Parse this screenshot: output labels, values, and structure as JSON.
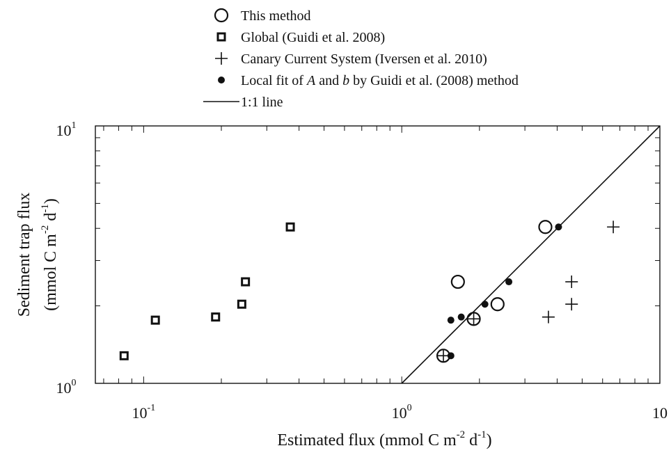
{
  "chart_data": {
    "type": "scatter",
    "xscale": "log",
    "yscale": "log",
    "xlim": [
      0.065,
      10
    ],
    "ylim": [
      1,
      10
    ],
    "xlabel": {
      "main": "Estimated flux (mmol C m",
      "exp1": "-2",
      "mid": " d",
      "exp2": "-1",
      "end": ")"
    },
    "ylabel": {
      "line1": "Sediment trap flux",
      "line2_main": "(mmol C m",
      "exp1": "-2",
      "mid": " d",
      "exp2": "-1",
      "end": ")"
    },
    "x_ticks": [
      {
        "value": 0.1,
        "base": "10",
        "exp": "-1"
      },
      {
        "value": 1,
        "base": "10",
        "exp": "0"
      },
      {
        "value": 10,
        "base": "10",
        "exp": ""
      }
    ],
    "y_ticks": [
      {
        "value": 1,
        "base": "10",
        "exp": "0"
      },
      {
        "value": 10,
        "base": "10",
        "exp": "1"
      }
    ],
    "legend_position": "top-center, outside plot",
    "legend": [
      {
        "label": "This method",
        "marker": "open-circle"
      },
      {
        "label": "Global (Guidi et al. 2008)",
        "marker": "open-square"
      },
      {
        "label": "Canary Current System (Iversen et al. 2010)",
        "marker": "plus"
      },
      {
        "label_parts": [
          "Local fit of ",
          "A",
          " and ",
          "b",
          " by Guidi et al. (2008) method"
        ],
        "marker": "filled-dot"
      },
      {
        "label": "1:1 line",
        "marker": "line"
      }
    ],
    "series": [
      {
        "name": "This method",
        "marker": "open-circle",
        "points": [
          [
            1.45,
            1.28
          ],
          [
            1.9,
            1.78
          ],
          [
            1.65,
            2.48
          ],
          [
            2.35,
            2.03
          ],
          [
            3.6,
            4.05
          ]
        ]
      },
      {
        "name": "Global (Guidi et al. 2008)",
        "marker": "open-square",
        "points": [
          [
            0.084,
            1.28
          ],
          [
            0.111,
            1.76
          ],
          [
            0.19,
            1.81
          ],
          [
            0.24,
            2.03
          ],
          [
            0.248,
            2.48
          ],
          [
            0.37,
            4.05
          ]
        ]
      },
      {
        "name": "Canary Current System (Iversen et al. 2010)",
        "marker": "plus",
        "points": [
          [
            1.45,
            1.28
          ],
          [
            1.9,
            1.78
          ],
          [
            3.7,
            1.81
          ],
          [
            4.55,
            2.03
          ],
          [
            4.55,
            2.48
          ],
          [
            6.6,
            4.05
          ]
        ]
      },
      {
        "name": "Local fit of A and b by Guidi et al. (2008) method",
        "marker": "filled-dot",
        "points": [
          [
            1.55,
            1.28
          ],
          [
            1.55,
            1.76
          ],
          [
            1.7,
            1.81
          ],
          [
            2.1,
            2.03
          ],
          [
            2.6,
            2.48
          ],
          [
            4.05,
            4.05
          ]
        ]
      }
    ],
    "reference_line": {
      "name": "1:1 line",
      "from": [
        1,
        1
      ],
      "to": [
        10,
        10
      ]
    }
  }
}
